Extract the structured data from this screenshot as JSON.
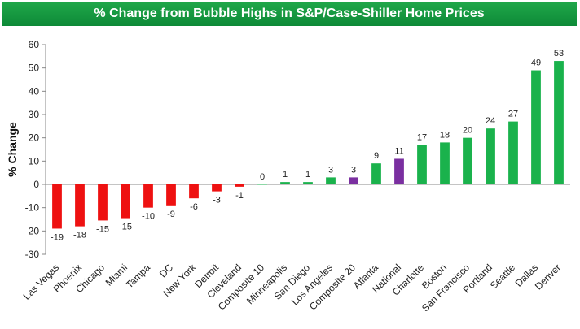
{
  "chart_data": {
    "type": "bar",
    "title": "% Change from Bubble Highs in S&P/Case-Shiller Home Prices",
    "xlabel": "",
    "ylabel": "% Change",
    "ylim": [
      -30,
      60
    ],
    "yticks": [
      -30,
      -20,
      -10,
      0,
      10,
      20,
      30,
      40,
      50,
      60
    ],
    "grid": false,
    "legend": "none",
    "categories": [
      "Las Vegas",
      "Phoenix",
      "Chicago",
      "Miami",
      "Tampa",
      "DC",
      "New York",
      "Detroit",
      "Cleveland",
      "Composite 10",
      "Minneapolis",
      "San Diego",
      "Los Angeles",
      "Composite 20",
      "Atlanta",
      "National",
      "Charlotte",
      "Boston",
      "San Francisco",
      "Portland",
      "Seattle",
      "Dallas",
      "Denver"
    ],
    "values": [
      -19,
      -18,
      -15.5,
      -14.5,
      -10,
      -9,
      -6,
      -3,
      -1,
      0,
      1,
      1,
      3,
      3,
      9,
      11,
      17,
      18,
      20,
      24,
      27,
      49,
      53
    ],
    "data_labels": [
      "-19",
      "-18",
      "-15",
      "-15",
      "-10",
      "-9",
      "-6",
      "-3",
      "-1",
      "0",
      "1",
      "1",
      "3",
      "3",
      "9",
      "11",
      "17",
      "18",
      "20",
      "24",
      "27",
      "49",
      "53"
    ],
    "colors": {
      "negative": "#ee1111",
      "positive": "#1ab24c",
      "composite": "#7a2fa0",
      "title_bg": "#13983f",
      "title_text": "#ffffff"
    },
    "highlighted": [
      "Composite 10",
      "Composite 20",
      "National"
    ]
  }
}
